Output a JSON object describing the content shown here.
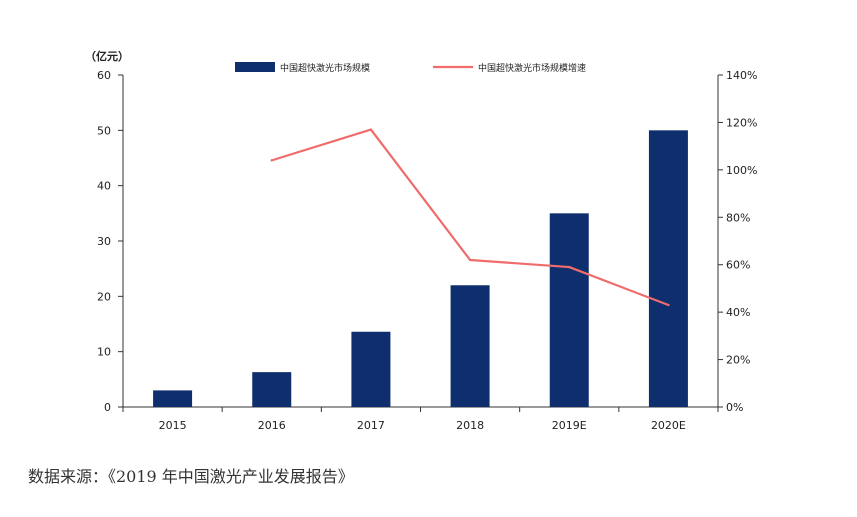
{
  "chart_data": {
    "type": "bar+line",
    "categories": [
      "2015",
      "2016",
      "2017",
      "2018",
      "2019E",
      "2020E"
    ],
    "series": [
      {
        "name": "中国超快激光市场规模",
        "type": "bar",
        "axis": "left",
        "color": "#0e2e6e",
        "values": [
          3.0,
          6.3,
          13.6,
          22.0,
          35.0,
          50.0
        ]
      },
      {
        "name": "中国超快激光市场规模增速",
        "type": "line",
        "axis": "right",
        "color": "#f06b6b",
        "values": [
          null,
          104,
          117,
          62,
          59,
          43
        ]
      }
    ],
    "left_axis": {
      "unit_label": "（亿元）",
      "ylim": [
        0,
        60
      ],
      "ticks": [
        "0",
        "10",
        "20",
        "30",
        "40",
        "50",
        "60"
      ]
    },
    "right_axis": {
      "ylim": [
        0,
        140
      ],
      "ticks": [
        "0%",
        "20%",
        "40%",
        "60%",
        "80%",
        "100%",
        "120%",
        "140%"
      ]
    },
    "legend_position": "top-center",
    "grid": false
  },
  "source_note": "数据来源：《2019 年中国激光产业发展报告》"
}
